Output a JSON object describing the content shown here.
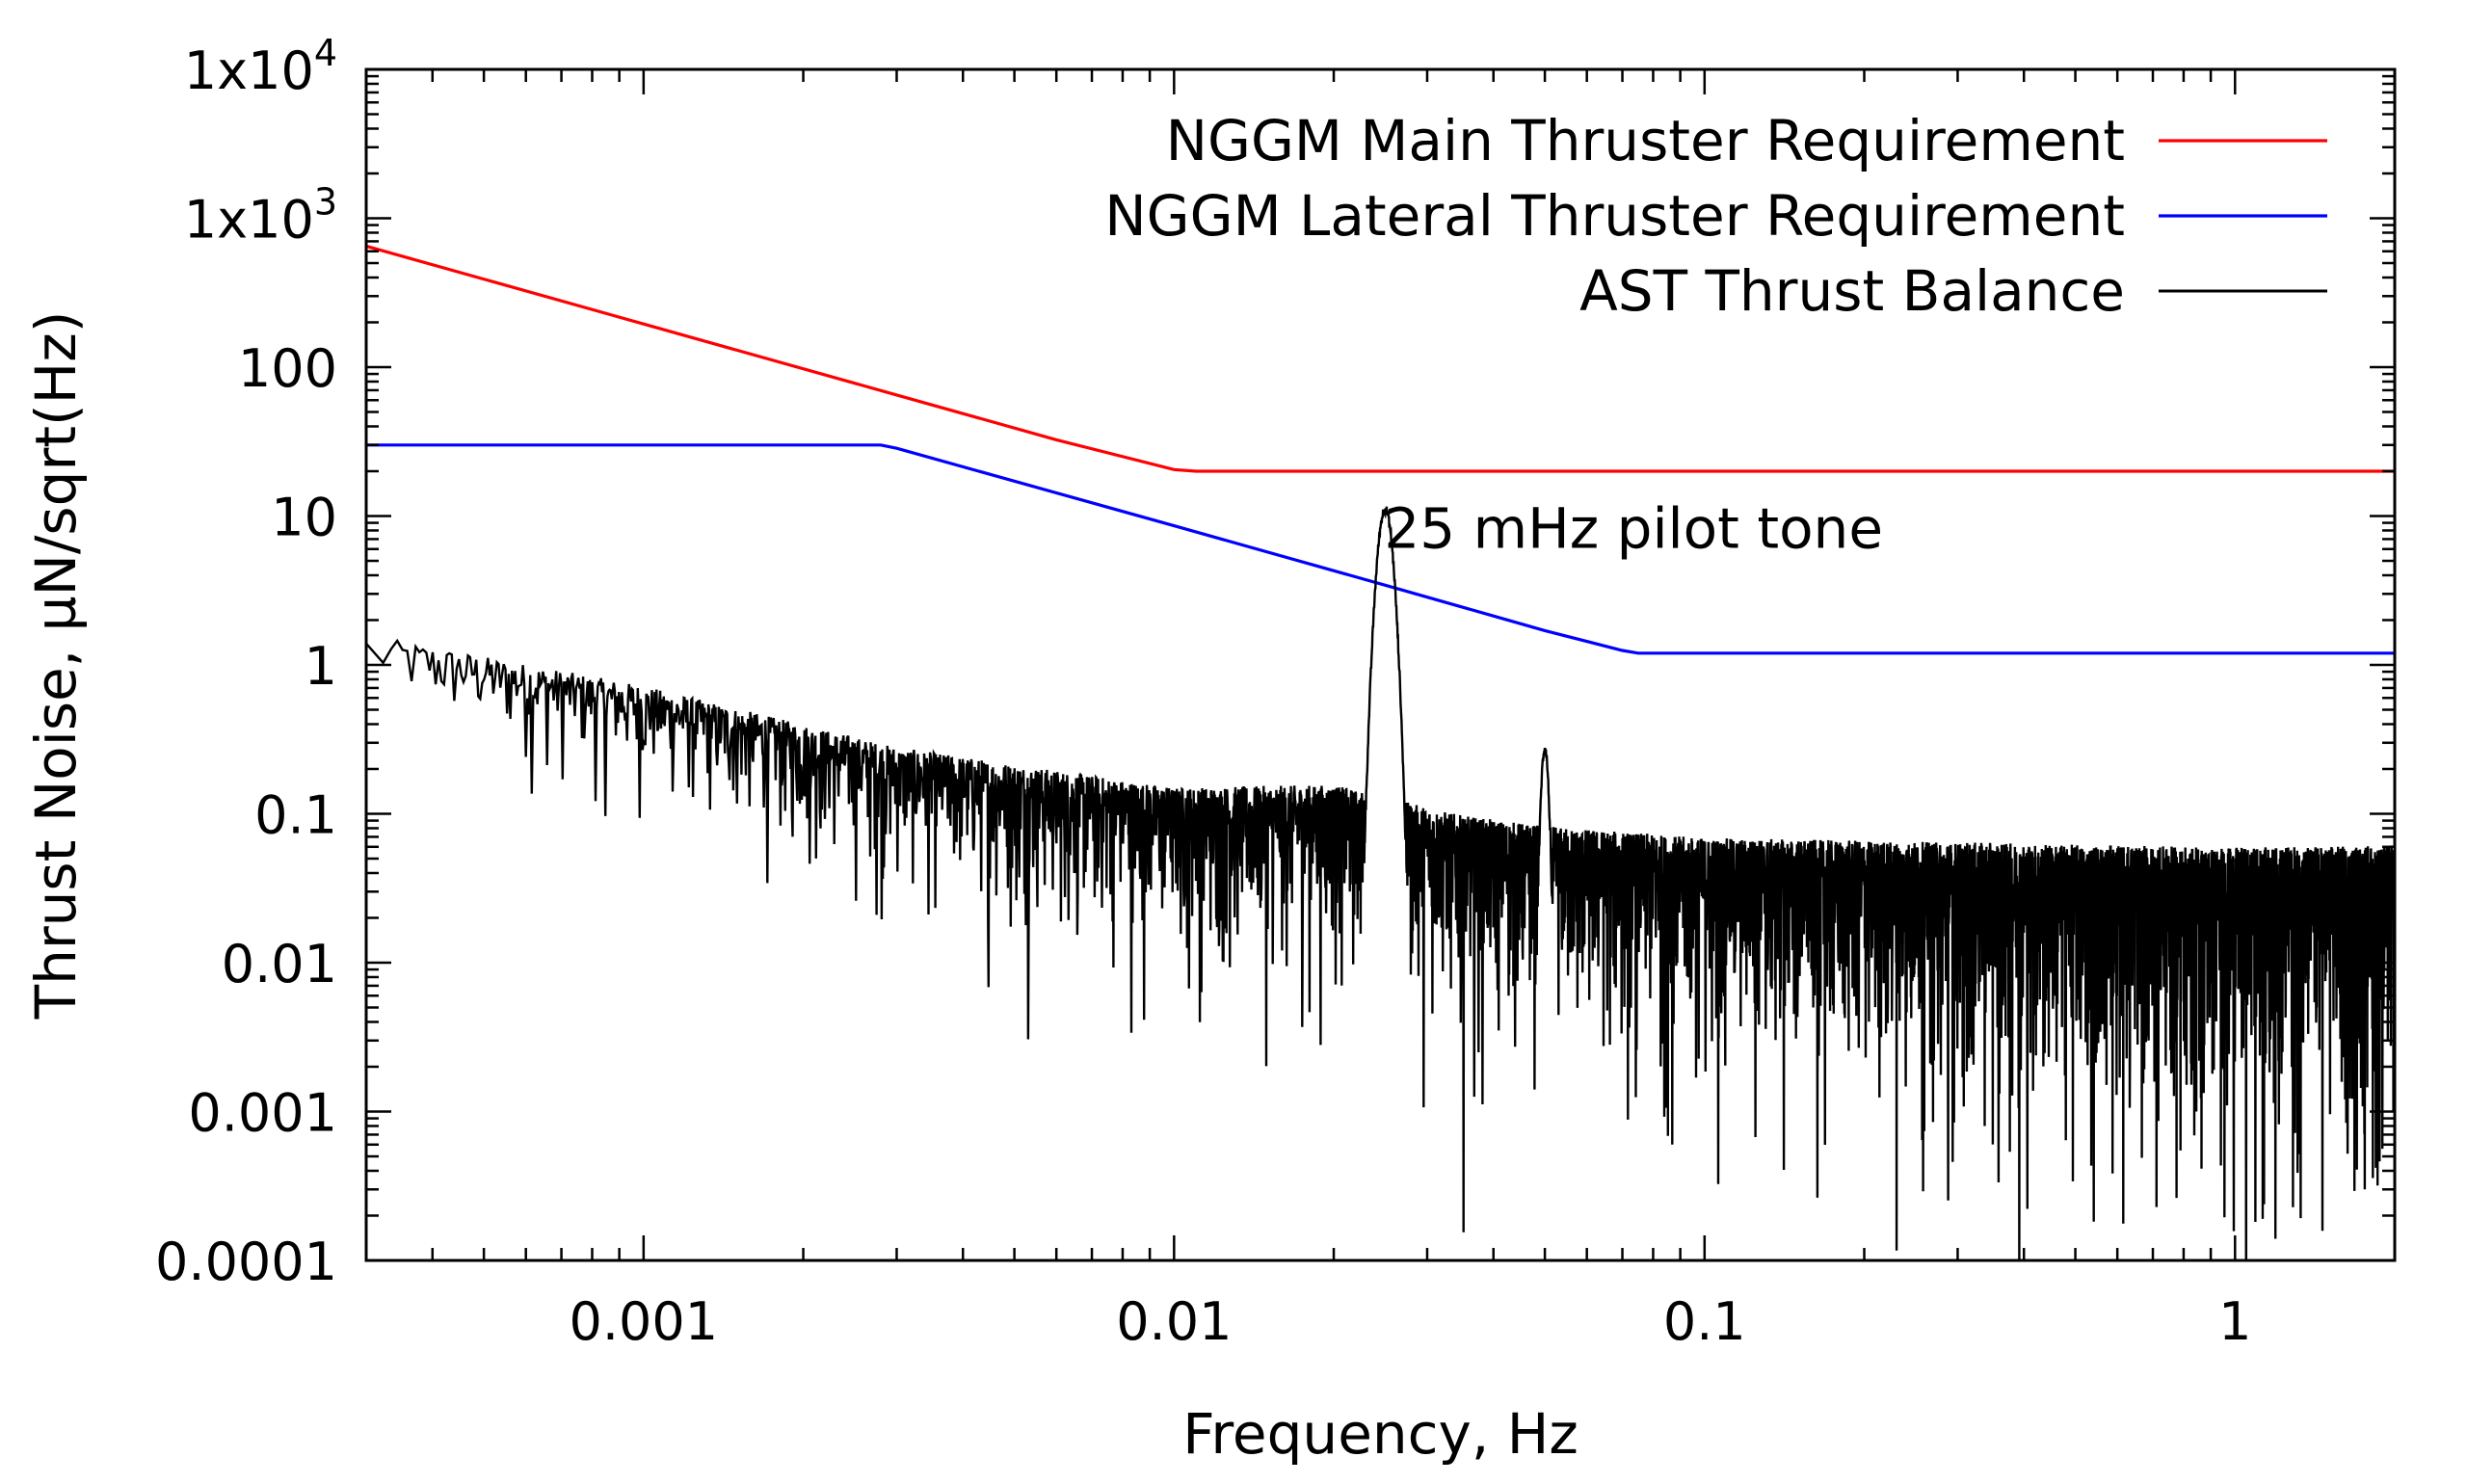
{
  "chart_data": {
    "type": "line",
    "xlabel": "Frequency, Hz",
    "ylabel": "Thrust Noise, µN/sqrt(Hz)",
    "x_scale": "log",
    "y_scale": "log",
    "xlim": [
      0.0003,
      2
    ],
    "ylim": [
      0.0001,
      10000
    ],
    "grid": false,
    "legend_position": "top-right",
    "x_ticks": [
      {
        "value": 0.001,
        "label": "0.001"
      },
      {
        "value": 0.01,
        "label": "0.01"
      },
      {
        "value": 0.1,
        "label": "0.1"
      },
      {
        "value": 1,
        "label": "1"
      }
    ],
    "y_ticks": [
      {
        "value": 0.0001,
        "label": "0.0001"
      },
      {
        "value": 0.001,
        "label": "0.001"
      },
      {
        "value": 0.01,
        "label": "0.01"
      },
      {
        "value": 0.1,
        "label": "0.1"
      },
      {
        "value": 1,
        "label": "1"
      },
      {
        "value": 10,
        "label": "10"
      },
      {
        "value": 100,
        "label": "100"
      },
      {
        "value": 1000,
        "label": "1x10",
        "sup": "3"
      },
      {
        "value": 10000,
        "label": "1x10",
        "sup": "4"
      }
    ],
    "series": [
      {
        "name": "NGGM Main Thruster Requirement",
        "color": "#ff0000",
        "x": [
          0.0003,
          0.001,
          0.003,
          0.006,
          0.01,
          0.011,
          0.02,
          0.1,
          1,
          2
        ],
        "y": [
          650,
          195,
          65,
          32.5,
          20.5,
          20,
          20,
          20,
          20,
          20
        ]
      },
      {
        "name": "NGGM Lateral Thruster Requirement",
        "color": "#0000ff",
        "x": [
          0.0003,
          0.001,
          0.0028,
          0.003,
          0.01,
          0.026,
          0.05,
          0.07,
          0.075,
          0.1,
          1,
          2
        ],
        "y": [
          30,
          30,
          30,
          28.5,
          8.6,
          3.3,
          1.7,
          1.25,
          1.2,
          1.2,
          1.2,
          1.2
        ]
      },
      {
        "name": "AST Thrust Balance",
        "color": "#000000",
        "style": "noise-spectrum",
        "trend_x": [
          0.0003,
          0.001,
          0.003,
          0.01,
          0.02,
          0.035,
          0.05,
          0.1,
          0.3,
          1,
          2
        ],
        "trend_y": [
          1.3,
          0.55,
          0.2,
          0.1,
          0.1,
          0.06,
          0.05,
          0.04,
          0.035,
          0.03,
          0.03
        ],
        "peaks": [
          {
            "x": 0.025,
            "y": 12
          },
          {
            "x": 0.05,
            "y": 0.3
          }
        ]
      }
    ],
    "annotations": [
      {
        "text": "25 mHz pilot tone",
        "x": 0.032,
        "y": 8
      }
    ]
  }
}
